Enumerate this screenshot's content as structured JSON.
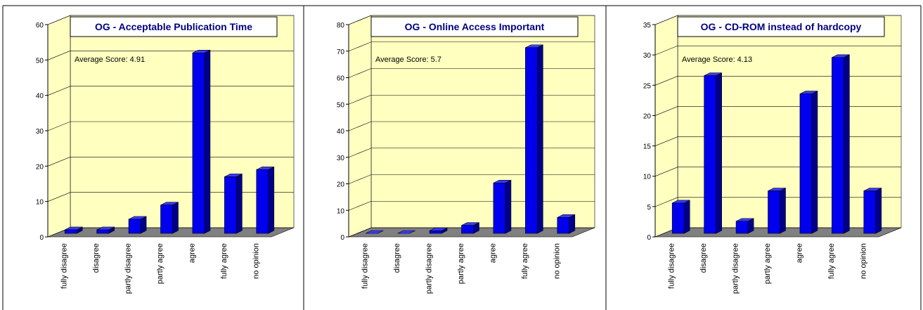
{
  "chart_data": [
    {
      "type": "bar",
      "title": "OG - Acceptable Publication Time",
      "annotation": "Average Score: 4.91",
      "categories": [
        "fully disagree",
        "disagree",
        "partly disagree",
        "partly agree",
        "agree",
        "fully agree",
        "no opinion"
      ],
      "values": [
        1,
        1,
        4,
        8,
        51,
        16,
        18
      ],
      "color": "#0000ee",
      "ylim": [
        0,
        60
      ],
      "yticks": [
        0,
        10,
        20,
        30,
        40,
        50,
        60
      ],
      "grid": true
    },
    {
      "type": "bar",
      "title": "OG - Online Access Important",
      "annotation": "Average Score: 5.7",
      "categories": [
        "fully disagree",
        "disagree",
        "partly disagree",
        "partly agree",
        "agree",
        "fully agree",
        "no opinion"
      ],
      "values": [
        0,
        0,
        1,
        3,
        19,
        70,
        6
      ],
      "color": "#0000ee",
      "ylim": [
        0,
        80
      ],
      "yticks": [
        0,
        10,
        20,
        30,
        40,
        50,
        60,
        70,
        80
      ],
      "grid": true
    },
    {
      "type": "bar",
      "title": "OG - CD-ROM instead of hardcopy",
      "annotation": "Average Score: 4.13",
      "categories": [
        "fully disagree",
        "disagree",
        "partly disagree",
        "partly agree",
        "agree",
        "fully agree",
        "no opinion"
      ],
      "values": [
        5,
        26,
        2,
        7,
        23,
        29,
        7
      ],
      "color": "#0000ee",
      "ylim": [
        0,
        35
      ],
      "yticks": [
        0,
        5,
        10,
        15,
        20,
        25,
        30,
        35
      ],
      "grid": true
    }
  ]
}
